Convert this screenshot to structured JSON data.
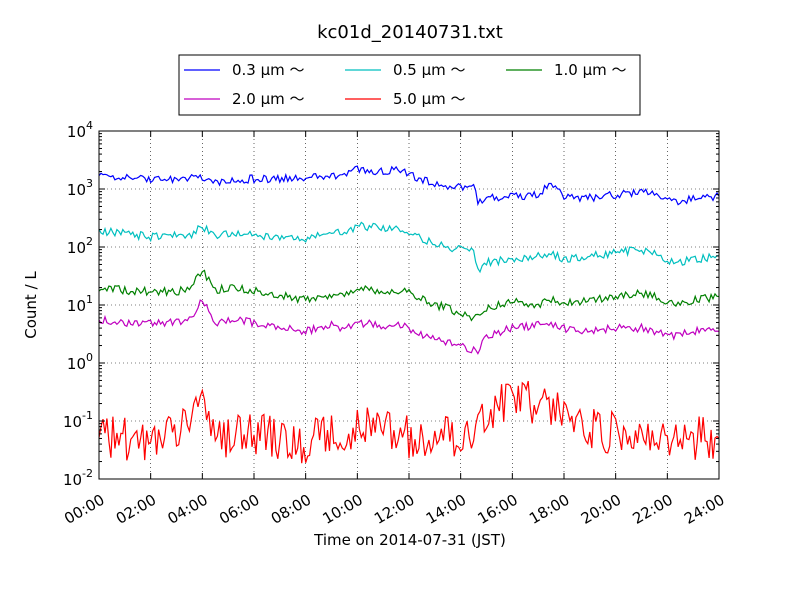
{
  "chart_data": {
    "type": "line",
    "title": "kc01d_20140731.txt",
    "xlabel": "Time on 2014-07-31 (JST)",
    "ylabel": "Count / L",
    "y_scale": "log",
    "ylim": [
      0.01,
      10000
    ],
    "y_ticks": [
      {
        "value": 0.01,
        "base": "10",
        "exp": "-2"
      },
      {
        "value": 0.1,
        "base": "10",
        "exp": "-1"
      },
      {
        "value": 1,
        "base": "10",
        "exp": "0"
      },
      {
        "value": 10,
        "base": "10",
        "exp": "1"
      },
      {
        "value": 100,
        "base": "10",
        "exp": "2"
      },
      {
        "value": 1000,
        "base": "10",
        "exp": "3"
      },
      {
        "value": 10000,
        "base": "10",
        "exp": "4"
      }
    ],
    "xlim": [
      "00:00",
      "24:00"
    ],
    "x_ticks": [
      "00:00",
      "02:00",
      "04:00",
      "06:00",
      "08:00",
      "10:00",
      "12:00",
      "14:00",
      "16:00",
      "18:00",
      "20:00",
      "22:00",
      "24:00"
    ],
    "grid": true,
    "legend_placement": "top, above plot",
    "legend_columns": 3,
    "series": [
      {
        "name": "0.3 μm ～",
        "color": "#0000ff",
        "x": [
          "00:00",
          "01:00",
          "02:00",
          "03:00",
          "03:30",
          "04:00",
          "04:30",
          "05:00",
          "06:00",
          "07:00",
          "08:00",
          "09:00",
          "09:30",
          "10:00",
          "11:00",
          "11:30",
          "12:00",
          "13:00",
          "13:30",
          "14:00",
          "14:30",
          "14:40",
          "15:00",
          "16:00",
          "17:00",
          "17:30",
          "18:00",
          "19:00",
          "20:00",
          "21:00",
          "21:30",
          "22:00",
          "22:30",
          "23:00",
          "24:00"
        ],
        "values": [
          1700,
          1600,
          1400,
          1500,
          1500,
          1600,
          1300,
          1400,
          1500,
          1500,
          1500,
          1700,
          1600,
          2200,
          2000,
          2200,
          1800,
          1200,
          1100,
          1100,
          1200,
          550,
          700,
          750,
          800,
          1200,
          750,
          700,
          800,
          900,
          800,
          650,
          600,
          700,
          750
        ]
      },
      {
        "name": "0.5 μm ～",
        "color": "#00bfbf",
        "x": [
          "00:00",
          "01:00",
          "02:00",
          "03:00",
          "03:30",
          "04:00",
          "04:30",
          "05:00",
          "06:00",
          "07:00",
          "08:00",
          "09:00",
          "09:30",
          "10:00",
          "11:00",
          "11:30",
          "12:00",
          "13:00",
          "13:30",
          "14:00",
          "14:30",
          "14:40",
          "15:00",
          "16:00",
          "17:00",
          "17:30",
          "18:00",
          "19:00",
          "20:00",
          "21:00",
          "21:30",
          "22:00",
          "22:30",
          "23:00",
          "24:00"
        ],
        "values": [
          190,
          170,
          150,
          160,
          160,
          220,
          160,
          170,
          160,
          150,
          140,
          180,
          170,
          230,
          210,
          220,
          180,
          110,
          100,
          90,
          100,
          40,
          55,
          60,
          70,
          80,
          60,
          70,
          80,
          90,
          80,
          60,
          55,
          60,
          70
        ]
      },
      {
        "name": "1.0 μm ～",
        "color": "#008000",
        "x": [
          "00:00",
          "01:00",
          "02:00",
          "03:00",
          "03:30",
          "04:00",
          "04:30",
          "05:00",
          "06:00",
          "07:00",
          "08:00",
          "09:00",
          "09:30",
          "10:00",
          "11:00",
          "11:30",
          "12:00",
          "13:00",
          "13:30",
          "14:00",
          "14:30",
          "14:40",
          "15:00",
          "16:00",
          "17:00",
          "17:30",
          "18:00",
          "19:00",
          "20:00",
          "21:00",
          "21:30",
          "22:00",
          "22:30",
          "23:00",
          "24:00"
        ],
        "values": [
          20,
          18,
          17,
          17,
          20,
          40,
          18,
          20,
          18,
          15,
          12,
          15,
          14,
          20,
          17,
          18,
          16,
          10,
          9,
          7,
          6,
          7,
          9,
          12,
          10,
          12,
          11,
          12,
          14,
          16,
          15,
          11,
          11,
          12,
          14
        ]
      },
      {
        "name": "2.0 μm ～",
        "color": "#bf00bf",
        "x": [
          "00:00",
          "01:00",
          "02:00",
          "03:00",
          "03:30",
          "04:00",
          "04:30",
          "05:00",
          "06:00",
          "07:00",
          "08:00",
          "09:00",
          "09:30",
          "10:00",
          "11:00",
          "11:30",
          "12:00",
          "13:00",
          "13:30",
          "14:00",
          "14:30",
          "14:40",
          "15:00",
          "16:00",
          "17:00",
          "17:30",
          "18:00",
          "19:00",
          "20:00",
          "21:00",
          "21:30",
          "22:00",
          "22:30",
          "23:00",
          "24:00"
        ],
        "values": [
          5.5,
          5,
          5,
          5,
          5.5,
          12,
          5,
          5.5,
          5,
          4,
          3.5,
          4.5,
          4,
          5,
          4.5,
          4.5,
          4,
          2.5,
          2.2,
          2,
          1.7,
          1.6,
          3,
          4,
          4.5,
          5,
          4,
          3.5,
          4,
          4,
          3.5,
          3,
          3,
          3.5,
          3.5
        ]
      },
      {
        "name": "5.0 μm ～",
        "color": "#ff0000",
        "x": [
          "00:00",
          "01:00",
          "02:00",
          "03:00",
          "03:30",
          "03:45",
          "04:00",
          "04:30",
          "05:00",
          "06:00",
          "07:00",
          "08:00",
          "09:00",
          "09:30",
          "10:00",
          "11:00",
          "11:30",
          "12:00",
          "13:00",
          "13:30",
          "14:00",
          "14:30",
          "15:00",
          "15:30",
          "16:00",
          "17:00",
          "17:30",
          "18:00",
          "19:00",
          "20:00",
          "21:00",
          "21:30",
          "22:00",
          "22:30",
          "23:00",
          "24:00"
        ],
        "values": [
          0.06,
          0.05,
          0.05,
          0.05,
          0.15,
          0.5,
          0.2,
          0.04,
          0.05,
          0.06,
          0.05,
          0.04,
          0.06,
          0.05,
          0.08,
          0.06,
          0.07,
          0.05,
          0.05,
          0.06,
          0.05,
          0.06,
          0.1,
          0.2,
          0.25,
          0.2,
          0.2,
          0.1,
          0.07,
          0.06,
          0.06,
          0.05,
          0.05,
          0.04,
          0.05,
          0.05
        ]
      }
    ]
  }
}
